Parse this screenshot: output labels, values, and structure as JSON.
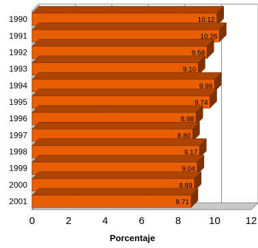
{
  "chart_data": {
    "type": "bar",
    "orientation": "horizontal",
    "three_d": true,
    "categories": [
      "1990",
      "1991",
      "1992",
      "1993",
      "1994",
      "1995",
      "1996",
      "1997",
      "1998",
      "1999",
      "2000",
      "2001"
    ],
    "values": [
      10.12,
      10.26,
      9.58,
      9.1,
      9.99,
      9.74,
      8.98,
      8.8,
      9.17,
      9.04,
      8.89,
      8.71
    ],
    "value_labels": [
      "10.12",
      "10.26",
      "9.58",
      "9.10",
      "9.99",
      "9.74",
      "8.98",
      "8.80",
      "9.17",
      "9.04",
      "8.89",
      "8.71"
    ],
    "xlabel": "Porcentaje",
    "ylabel": "",
    "title": "",
    "xlim": [
      0,
      12
    ],
    "xticks": [
      "0",
      "2",
      "4",
      "6",
      "8",
      "10",
      "12"
    ],
    "grid": "vertical",
    "legend": "none",
    "colors": {
      "bar_front": "#e85e00",
      "bar_top": "#ad4500",
      "bar_side": "#7d3200",
      "grid": "#888888"
    }
  }
}
